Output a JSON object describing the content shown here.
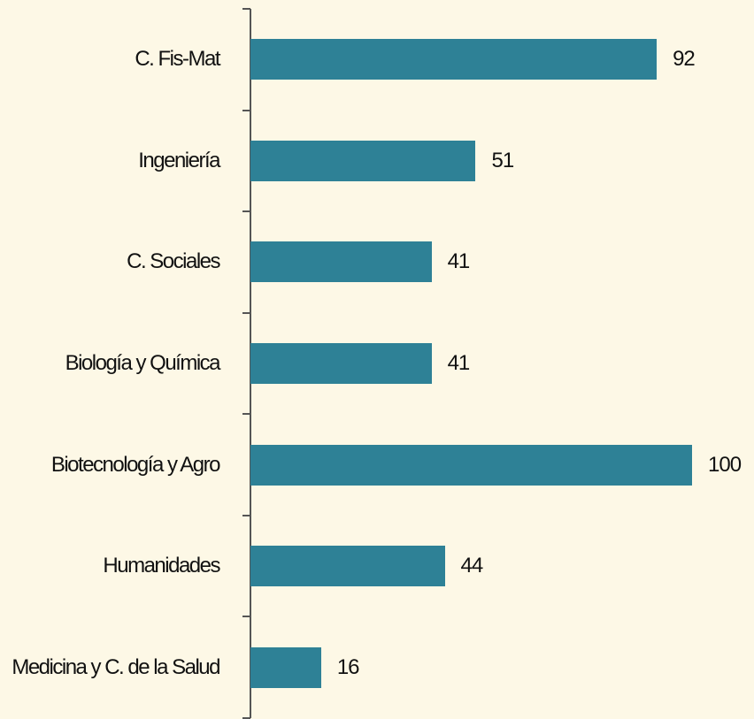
{
  "chart_data": {
    "type": "barh",
    "categories": [
      "C. Fis-Mat",
      "Ingeniería",
      "C. Sociales",
      "Biología y Química",
      "Biotecnología y Agro",
      "Humanidades",
      "Medicina y C. de la Salud"
    ],
    "values": [
      92,
      51,
      41,
      41,
      100,
      44,
      16
    ],
    "color": "#2e8196"
  }
}
